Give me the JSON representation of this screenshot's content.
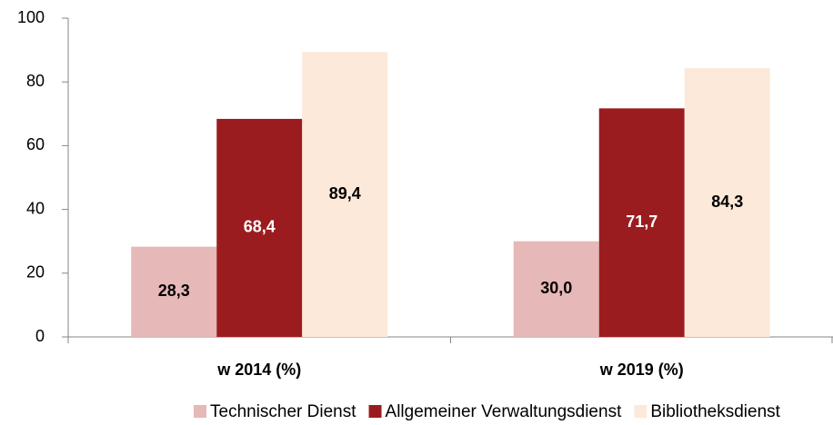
{
  "chart_data": {
    "type": "bar",
    "categories": [
      "w 2014 (%)",
      "w 2019 (%)"
    ],
    "series": [
      {
        "name": "Technischer Dienst",
        "color": "#e6b8b7",
        "label_color": "#000000",
        "values": [
          28.3,
          30.0
        ],
        "value_labels": [
          "28,3",
          "30,0"
        ]
      },
      {
        "name": "Allgemeiner Verwaltungsdienst",
        "color": "#9b1c1f",
        "label_color": "#ffffff",
        "values": [
          68.4,
          71.7
        ],
        "value_labels": [
          "68,4",
          "71,7"
        ]
      },
      {
        "name": "Bibliotheksdienst",
        "color": "#fde9d9",
        "label_color": "#000000",
        "values": [
          89.4,
          84.3
        ],
        "value_labels": [
          "89,4",
          "84,3"
        ]
      }
    ],
    "ylim": [
      0,
      100
    ],
    "yticks": [
      0,
      20,
      40,
      60,
      80,
      100
    ],
    "grid": false,
    "legend": "bottom"
  }
}
